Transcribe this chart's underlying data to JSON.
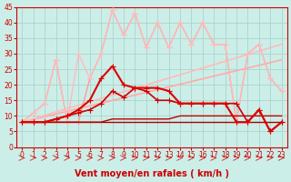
{
  "title": "",
  "xlabel": "Vent moyen/en rafales ( km/h )",
  "background_color": "#cceee8",
  "grid_color": "#aad4cc",
  "xlim": [
    -0.5,
    23.5
  ],
  "ylim": [
    0,
    45
  ],
  "yticks": [
    0,
    5,
    10,
    15,
    20,
    25,
    30,
    35,
    40,
    45
  ],
  "xticks": [
    0,
    1,
    2,
    3,
    4,
    5,
    6,
    7,
    8,
    9,
    10,
    11,
    12,
    13,
    14,
    15,
    16,
    17,
    18,
    19,
    20,
    21,
    22,
    23
  ],
  "lines": [
    {
      "x": [
        0,
        1,
        2,
        3,
        4,
        5,
        6,
        7,
        8,
        9,
        10,
        11,
        12,
        13,
        14,
        15,
        16,
        17,
        18,
        19,
        20,
        21,
        22,
        23
      ],
      "y": [
        8,
        8,
        8,
        8,
        8,
        8,
        8,
        8,
        8,
        8,
        8,
        8,
        8,
        8,
        8,
        8,
        8,
        8,
        8,
        8,
        8,
        8,
        8,
        8
      ],
      "color": "#aa0000",
      "linewidth": 1.0,
      "marker": null,
      "markersize": 0,
      "zorder": 5
    },
    {
      "x": [
        0,
        1,
        2,
        3,
        4,
        5,
        6,
        7,
        8,
        9,
        10,
        11,
        12,
        13,
        14,
        15,
        16,
        17,
        18,
        19,
        20,
        21,
        22,
        23
      ],
      "y": [
        8,
        8,
        8,
        8,
        8,
        8,
        8,
        8,
        9,
        9,
        9,
        9,
        9,
        9,
        10,
        10,
        10,
        10,
        10,
        10,
        10,
        10,
        10,
        10
      ],
      "color": "#bb0000",
      "linewidth": 1.0,
      "marker": null,
      "markersize": 0,
      "zorder": 5
    },
    {
      "x": [
        0,
        1,
        2,
        3,
        4,
        5,
        6,
        7,
        8,
        9,
        10,
        11,
        12,
        13,
        14,
        15,
        16,
        17,
        18,
        19,
        20,
        21,
        22,
        23
      ],
      "y": [
        8,
        8,
        8,
        9,
        10,
        11,
        12,
        14,
        18,
        16,
        19,
        18,
        15,
        15,
        14,
        14,
        14,
        14,
        14,
        14,
        8,
        12,
        5,
        8
      ],
      "color": "#cc0000",
      "linewidth": 1.2,
      "marker": "+",
      "markersize": 4,
      "zorder": 5
    },
    {
      "x": [
        0,
        1,
        2,
        3,
        4,
        5,
        6,
        7,
        8,
        9,
        10,
        11,
        12,
        13,
        14,
        15,
        16,
        17,
        18,
        19,
        20,
        21,
        22,
        23
      ],
      "y": [
        8,
        8,
        8,
        9,
        10,
        12,
        15,
        22,
        26,
        20,
        19,
        19,
        19,
        18,
        14,
        14,
        14,
        14,
        14,
        8,
        8,
        12,
        5,
        8
      ],
      "color": "#dd0000",
      "linewidth": 1.5,
      "marker": "+",
      "markersize": 5,
      "zorder": 5
    },
    {
      "x": [
        0,
        23
      ],
      "y": [
        8,
        28
      ],
      "color": "#ffaaaa",
      "linewidth": 1.2,
      "marker": null,
      "markersize": 0,
      "zorder": 2
    },
    {
      "x": [
        0,
        23
      ],
      "y": [
        8,
        33
      ],
      "color": "#ffbbbb",
      "linewidth": 1.2,
      "marker": null,
      "markersize": 0,
      "zorder": 2
    },
    {
      "x": [
        0,
        1,
        2,
        3,
        4,
        5,
        6,
        7,
        8,
        9,
        10,
        11,
        12,
        13,
        14,
        15,
        16,
        17,
        18,
        19,
        20,
        21,
        22,
        23
      ],
      "y": [
        8,
        11,
        14,
        28,
        8,
        8,
        22,
        30,
        44,
        36,
        43,
        32,
        40,
        32,
        40,
        33,
        40,
        33,
        33,
        8,
        30,
        33,
        22,
        18
      ],
      "color": "#ff9999",
      "linewidth": 1.0,
      "marker": "+",
      "markersize": 4,
      "zorder": 3
    },
    {
      "x": [
        0,
        1,
        2,
        3,
        4,
        5,
        6,
        7,
        8,
        9,
        10,
        11,
        12,
        13,
        14,
        15,
        16,
        17,
        18,
        19,
        20,
        21,
        22,
        23
      ],
      "y": [
        8,
        11,
        14,
        28,
        8,
        30,
        22,
        30,
        44,
        36,
        43,
        32,
        40,
        32,
        40,
        33,
        40,
        33,
        33,
        8,
        30,
        33,
        22,
        18
      ],
      "color": "#ffbbbb",
      "linewidth": 1.0,
      "marker": "+",
      "markersize": 4,
      "zorder": 3
    }
  ],
  "tick_fontsize": 5.5,
  "label_fontsize": 7
}
